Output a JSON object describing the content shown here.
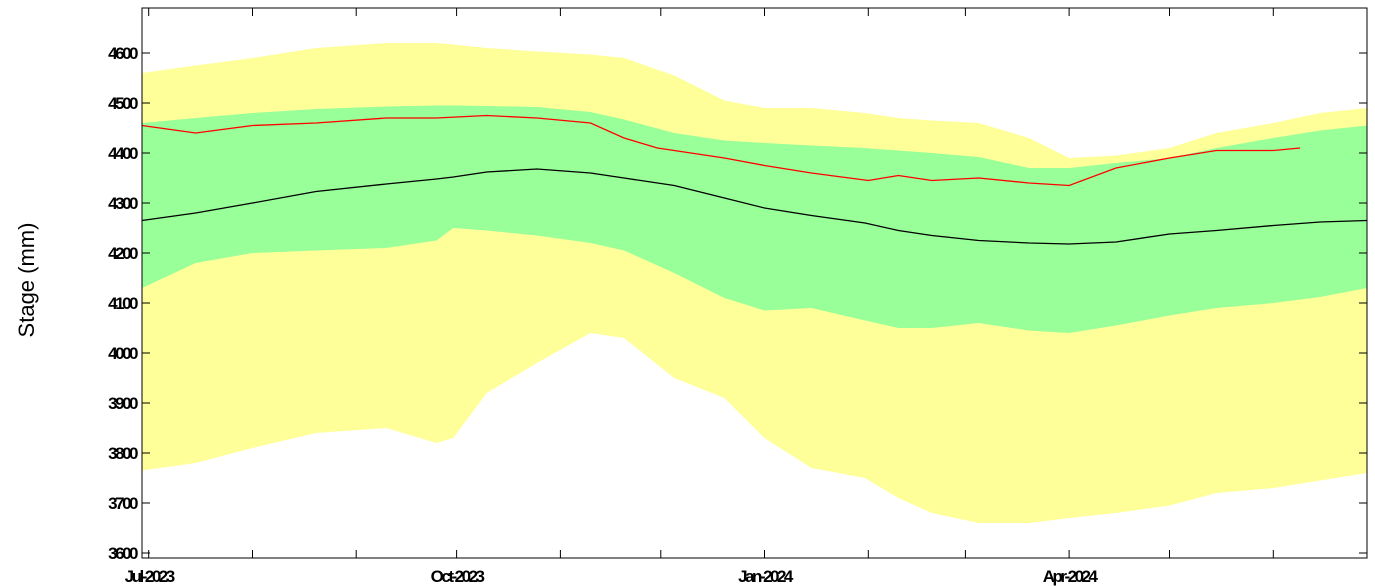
{
  "chart_data": {
    "type": "area",
    "xlabel": "",
    "ylabel": "Stage (mm)",
    "ylim": [
      3590,
      4690
    ],
    "xlim": [
      "2023-06-29",
      "2024-06-29"
    ],
    "x_tick_dates": [
      "2023-07-01",
      "2023-08-01",
      "2023-09-01",
      "2023-10-01",
      "2023-11-01",
      "2023-12-01",
      "2024-01-01",
      "2024-02-01",
      "2024-03-01",
      "2024-04-01",
      "2024-05-01",
      "2024-06-01"
    ],
    "x_tick_labels": [
      {
        "date": "2023-07-01",
        "label": "Jul-2023"
      },
      {
        "date": "2023-10-01",
        "label": "Oct-2023"
      },
      {
        "date": "2024-01-01",
        "label": "Jan-2024"
      },
      {
        "date": "2024-04-01",
        "label": "Apr-2024"
      }
    ],
    "y_ticks": [
      3600,
      3700,
      3800,
      3900,
      4000,
      4100,
      4200,
      4300,
      4400,
      4500,
      4600
    ],
    "grid": false,
    "colors": {
      "outer_band": "#ffff99",
      "inner_band": "#99ff99",
      "current_series": "#ff0000",
      "median_series": "#000000"
    },
    "x": [
      "2023-06-29",
      "2023-07-15",
      "2023-08-01",
      "2023-08-20",
      "2023-09-10",
      "2023-09-25",
      "2023-09-30",
      "2023-10-10",
      "2023-10-25",
      "2023-11-10",
      "2023-11-20",
      "2023-12-05",
      "2023-12-20",
      "2024-01-01",
      "2024-01-15",
      "2024-01-31",
      "2024-02-10",
      "2024-02-20",
      "2024-03-05",
      "2024-03-20",
      "2024-04-01",
      "2024-04-15",
      "2024-05-01",
      "2024-05-15",
      "2024-06-01",
      "2024-06-15",
      "2024-06-29"
    ],
    "series": [
      {
        "role": "outer_upper",
        "values": [
          4560,
          4575,
          4590,
          4610,
          4620,
          4620,
          4617,
          4610,
          4603,
          4597,
          4590,
          4555,
          4505,
          4490,
          4490,
          4480,
          4470,
          4465,
          4460,
          4430,
          4390,
          4395,
          4410,
          4440,
          4460,
          4480,
          4490
        ]
      },
      {
        "role": "inner_upper",
        "values": [
          4460,
          4470,
          4480,
          4488,
          4493,
          4495,
          4495,
          4494,
          4492,
          4482,
          4467,
          4440,
          4425,
          4420,
          4415,
          4410,
          4405,
          4400,
          4392,
          4370,
          4370,
          4380,
          4390,
          4410,
          4430,
          4445,
          4455
        ]
      },
      {
        "role": "inner_lower",
        "values": [
          4130,
          4180,
          4200,
          4205,
          4210,
          4225,
          4250,
          4245,
          4235,
          4220,
          4205,
          4160,
          4110,
          4085,
          4090,
          4065,
          4050,
          4050,
          4060,
          4045,
          4040,
          4055,
          4075,
          4090,
          4100,
          4112,
          4130
        ]
      },
      {
        "role": "outer_lower",
        "values": [
          3765,
          3780,
          3810,
          3840,
          3850,
          3820,
          3830,
          3920,
          3980,
          4040,
          4030,
          3950,
          3910,
          3830,
          3770,
          3750,
          3710,
          3680,
          3660,
          3660,
          3670,
          3680,
          3695,
          3720,
          3730,
          3745,
          3760
        ]
      },
      {
        "role": "median",
        "values": [
          4265,
          4280,
          4300,
          4323,
          4338,
          4348,
          4352,
          4362,
          4368,
          4360,
          4350,
          4335,
          4310,
          4290,
          4275,
          4260,
          4245,
          4235,
          4225,
          4220,
          4218,
          4222,
          4238,
          4245,
          4255,
          4262,
          4265
        ]
      },
      {
        "role": "current",
        "x": [
          "2023-06-29",
          "2023-07-15",
          "2023-08-01",
          "2023-08-20",
          "2023-09-10",
          "2023-09-25",
          "2023-10-10",
          "2023-10-25",
          "2023-11-10",
          "2023-11-20",
          "2023-11-30",
          "2023-12-10",
          "2023-12-20",
          "2024-01-01",
          "2024-01-15",
          "2024-02-01",
          "2024-02-10",
          "2024-02-20",
          "2024-03-05",
          "2024-03-20",
          "2024-04-01",
          "2024-04-15",
          "2024-05-01",
          "2024-05-15",
          "2024-06-01",
          "2024-06-09"
        ],
        "values": [
          4455,
          4440,
          4455,
          4460,
          4470,
          4470,
          4475,
          4470,
          4460,
          4430,
          4410,
          4400,
          4390,
          4375,
          4360,
          4345,
          4355,
          4345,
          4350,
          4340,
          4335,
          4370,
          4390,
          4405,
          4405,
          4410
        ]
      }
    ]
  }
}
